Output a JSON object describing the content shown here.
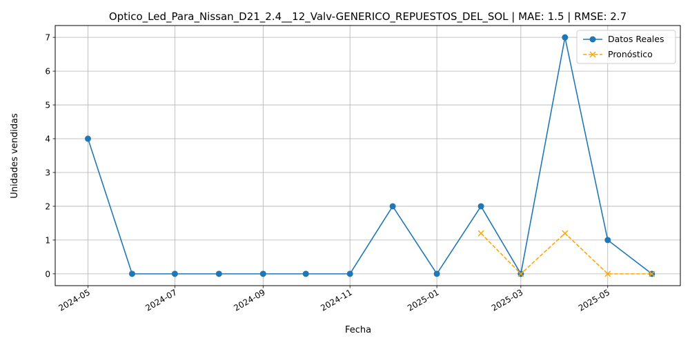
{
  "chart_data": {
    "type": "line",
    "title": "Optico_Led_Para_Nissan_D21_2.4__12_Valv-GENERICO_REPUESTOS_DEL_SOL | MAE: 1.5 | RMSE: 2.7",
    "xlabel": "Fecha",
    "ylabel": "Unidades vendidas",
    "ylim": [
      -0.35,
      7.35
    ],
    "xlim": [
      "2024-04-08",
      "2025-06-21"
    ],
    "grid": true,
    "legend_position": "top-right",
    "x_ticks": [
      "2024-05",
      "2024-07",
      "2024-09",
      "2024-11",
      "2025-01",
      "2025-03",
      "2025-05"
    ],
    "x_tick_dates": [
      "2024-05-01",
      "2024-07-01",
      "2024-09-01",
      "2024-11-01",
      "2025-01-01",
      "2025-03-01",
      "2025-05-01"
    ],
    "y_ticks": [
      0,
      1,
      2,
      3,
      4,
      5,
      6,
      7
    ],
    "series": [
      {
        "name": "Datos Reales",
        "color": "#1f77b4",
        "style": "solid",
        "marker": "circle",
        "x": [
          "2024-05-01",
          "2024-06-01",
          "2024-07-01",
          "2024-08-01",
          "2024-09-01",
          "2024-10-01",
          "2024-11-01",
          "2024-12-01",
          "2025-01-01",
          "2025-02-01",
          "2025-03-01",
          "2025-04-01",
          "2025-05-01",
          "2025-06-01"
        ],
        "values": [
          4,
          0,
          0,
          0,
          0,
          0,
          0,
          2,
          0,
          2,
          0,
          7,
          1,
          0
        ]
      },
      {
        "name": "Pronóstico",
        "color": "#ffa500",
        "style": "dashed",
        "marker": "x",
        "x": [
          "2025-02-01",
          "2025-03-01",
          "2025-04-01",
          "2025-05-01",
          "2025-06-01"
        ],
        "values": [
          1.2,
          0,
          1.2,
          0,
          0
        ]
      }
    ]
  }
}
